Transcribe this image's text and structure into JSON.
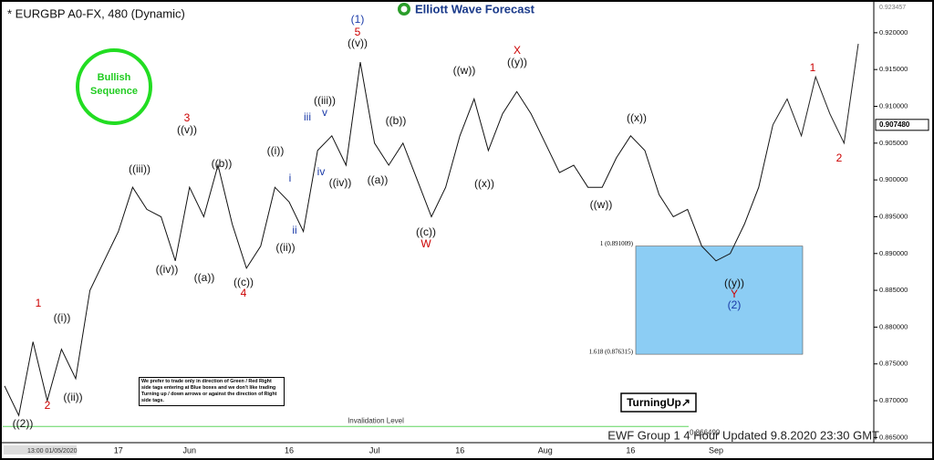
{
  "chart_data": {
    "type": "line",
    "title": "* EURGBP A0-FX, 480 (Dynamic)",
    "logo": "Elliott Wave Forecast",
    "badge": "Bullish Sequence",
    "categories": [
      null,
      null,
      null,
      null,
      null,
      null,
      null,
      null,
      "17",
      null,
      null,
      null,
      null,
      "Jun",
      null,
      null,
      null,
      null,
      null,
      null,
      "16",
      null,
      null,
      null,
      null,
      null,
      "Jul",
      null,
      null,
      null,
      null,
      null,
      "16",
      null,
      null,
      null,
      null,
      null,
      "Aug",
      null,
      null,
      null,
      null,
      null,
      "16",
      null,
      null,
      null,
      null,
      null,
      "Sep",
      null,
      null,
      null,
      null,
      null,
      null,
      null,
      null,
      null,
      null
    ],
    "series": [
      {
        "color": "#111111",
        "values": [
          0.872,
          0.868,
          0.878,
          0.87,
          0.877,
          0.873,
          0.885,
          0.889,
          0.893,
          0.899,
          0.896,
          0.895,
          0.889,
          0.899,
          0.895,
          0.902,
          0.894,
          0.888,
          0.891,
          0.899,
          0.897,
          0.893,
          0.904,
          0.906,
          0.902,
          0.916,
          0.905,
          0.902,
          0.905,
          0.9,
          0.895,
          0.899,
          0.906,
          0.911,
          0.904,
          0.909,
          0.912,
          0.909,
          0.905,
          0.901,
          0.902,
          0.899,
          0.899,
          0.903,
          0.906,
          0.904,
          0.898,
          0.895,
          0.896,
          0.891,
          0.889,
          0.89,
          0.894,
          0.899,
          0.9075,
          null,
          null,
          null,
          null,
          null,
          null
        ]
      },
      {
        "color": "#222222",
        "values": [
          null,
          null,
          null,
          null,
          null,
          null,
          null,
          null,
          null,
          null,
          null,
          null,
          null,
          null,
          null,
          null,
          null,
          null,
          null,
          null,
          null,
          null,
          null,
          null,
          null,
          null,
          null,
          null,
          null,
          null,
          null,
          null,
          null,
          null,
          null,
          null,
          null,
          null,
          null,
          null,
          null,
          null,
          null,
          null,
          null,
          null,
          null,
          null,
          null,
          null,
          null,
          null,
          null,
          null,
          0.9075,
          0.911,
          0.906,
          0.914,
          0.909,
          0.905,
          0.9185
        ]
      }
    ],
    "ylim": [
      0.8643,
      0.9242
    ],
    "yticks": [
      {
        "value": 0.865,
        "label": "0.865000"
      },
      {
        "value": 0.87,
        "label": "0.870000"
      },
      {
        "value": 0.875,
        "label": "0.875000"
      },
      {
        "value": 0.88,
        "label": "0.880000"
      },
      {
        "value": 0.885,
        "label": "0.885000"
      },
      {
        "value": 0.89,
        "label": "0.890000"
      },
      {
        "value": 0.895,
        "label": "0.895000"
      },
      {
        "value": 0.9,
        "label": "0.900000"
      },
      {
        "value": 0.905,
        "label": "0.905000"
      },
      {
        "value": 0.91,
        "label": "0.910000"
      },
      {
        "value": 0.915,
        "label": "0.915000"
      },
      {
        "value": 0.92,
        "label": "0.920000"
      }
    ],
    "grid": false,
    "top_price": 0.923457,
    "current_price": {
      "value": 0.90748,
      "label": "0.907480"
    },
    "blue_box": {
      "color": "#8ccdf4",
      "top": {
        "value": 0.891009,
        "label": "1 (0.891009)"
      },
      "bottom": {
        "value": 0.876315,
        "label": "1.618 (0.876315)"
      }
    },
    "invalidation": {
      "value": 0.866499,
      "label": "Invalidation Level",
      "color": "#5ed65e"
    },
    "annotations": [
      {
        "text": "((2))",
        "color": "#111111"
      },
      {
        "text": "1",
        "color": "#cc0000"
      },
      {
        "text": "2",
        "color": "#cc0000"
      },
      {
        "text": "((i))",
        "color": "#111111"
      },
      {
        "text": "((ii))",
        "color": "#111111"
      },
      {
        "text": "((iii))",
        "color": "#111111"
      },
      {
        "text": "((iv))",
        "color": "#111111"
      },
      {
        "text": "3",
        "color": "#cc0000"
      },
      {
        "text": "((v))",
        "color": "#111111"
      },
      {
        "text": "((a))",
        "color": "#111111"
      },
      {
        "text": "((b))",
        "color": "#111111"
      },
      {
        "text": "((c))",
        "color": "#111111"
      },
      {
        "text": "4",
        "color": "#cc0000"
      },
      {
        "text": "((i))",
        "color": "#111111"
      },
      {
        "text": "((ii))",
        "color": "#111111"
      },
      {
        "text": "i",
        "color": "#1a3aa8"
      },
      {
        "text": "ii",
        "color": "#1a3aa8"
      },
      {
        "text": "iii",
        "color": "#1a3aa8"
      },
      {
        "text": "iv",
        "color": "#1a3aa8"
      },
      {
        "text": "v",
        "color": "#1a3aa8"
      },
      {
        "text": "((iii))",
        "color": "#111111"
      },
      {
        "text": "((iv))",
        "color": "#111111"
      },
      {
        "text": "(1)",
        "color": "#1a3aa8"
      },
      {
        "text": "5",
        "color": "#cc0000"
      },
      {
        "text": "((v))",
        "color": "#111111"
      },
      {
        "text": "((a))",
        "color": "#111111"
      },
      {
        "text": "((b))",
        "color": "#111111"
      },
      {
        "text": "((c))",
        "color": "#111111"
      },
      {
        "text": "W",
        "color": "#cc0000"
      },
      {
        "text": "((w))",
        "color": "#111111"
      },
      {
        "text": "((x))",
        "color": "#111111"
      },
      {
        "text": "X",
        "color": "#cc0000"
      },
      {
        "text": "((y))",
        "color": "#111111"
      },
      {
        "text": "((x))",
        "color": "#111111"
      },
      {
        "text": "((w))",
        "color": "#111111"
      },
      {
        "text": "((y))",
        "color": "#111111"
      },
      {
        "text": "Y",
        "color": "#cc0000"
      },
      {
        "text": "(2)",
        "color": "#1a3aa8"
      },
      {
        "text": "1",
        "color": "#cc0000"
      },
      {
        "text": "2",
        "color": "#cc0000"
      }
    ],
    "note": "We prefer to trade only in direction of Green / Red Right side tags entering at Blue boxes and we don't like trading Turning up / down arrows or against the direction of Right side tags.",
    "turning_tag": "TurningUp↗",
    "footer": "EWF Group 1 4 Hour Updated 9.8.2020 23:30 GMT",
    "timestamp": "13:00 01/05/2020"
  }
}
